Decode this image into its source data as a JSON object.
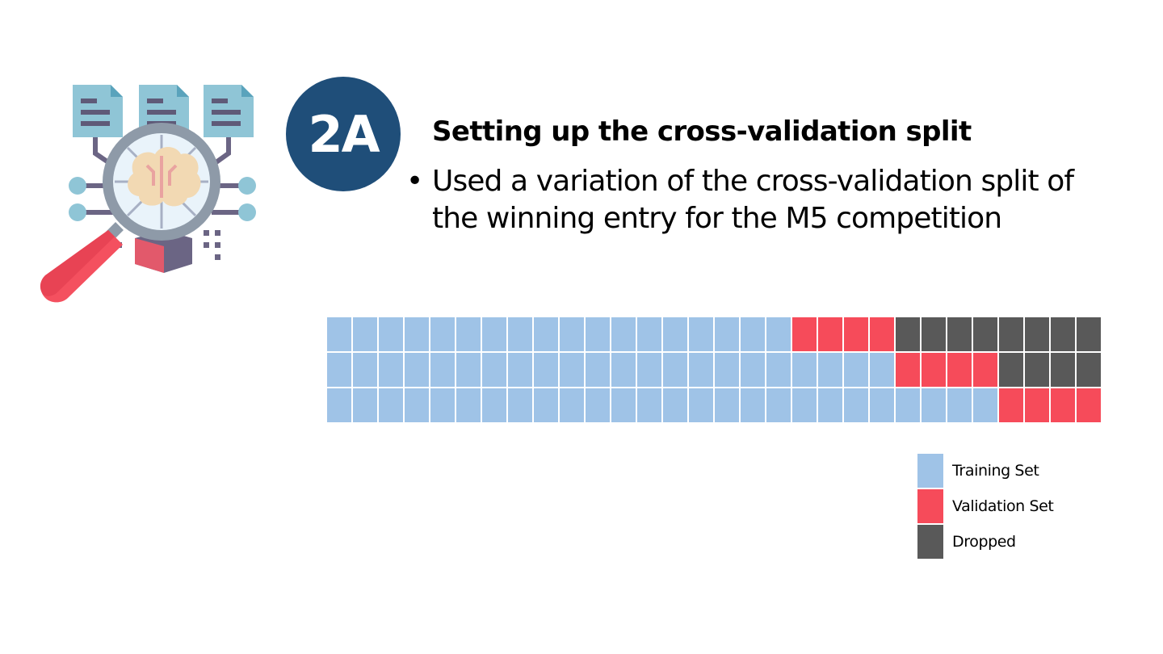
{
  "badge": {
    "text": "2A"
  },
  "heading": "Setting up the cross-validation split",
  "bullet": {
    "marker": "•",
    "text": "Used a variation of the cross-validation split of the winning entry for the M5 competition"
  },
  "colors": {
    "training": "#9fc3e7",
    "validation": "#f64b5a",
    "dropped": "#595959",
    "badge": "#1f4e79"
  },
  "split_grid": {
    "columns": 30,
    "rows": [
      {
        "training": 18,
        "validation": 4,
        "dropped": 8
      },
      {
        "training": 22,
        "validation": 4,
        "dropped": 4
      },
      {
        "training": 26,
        "validation": 4,
        "dropped": 0
      }
    ]
  },
  "legend": [
    {
      "key": "training",
      "label": "Training Set"
    },
    {
      "key": "validation",
      "label": "Validation Set"
    },
    {
      "key": "dropped",
      "label": "Dropped"
    }
  ],
  "illustration": {
    "icon": "magnifier-brain-documents-icon"
  }
}
